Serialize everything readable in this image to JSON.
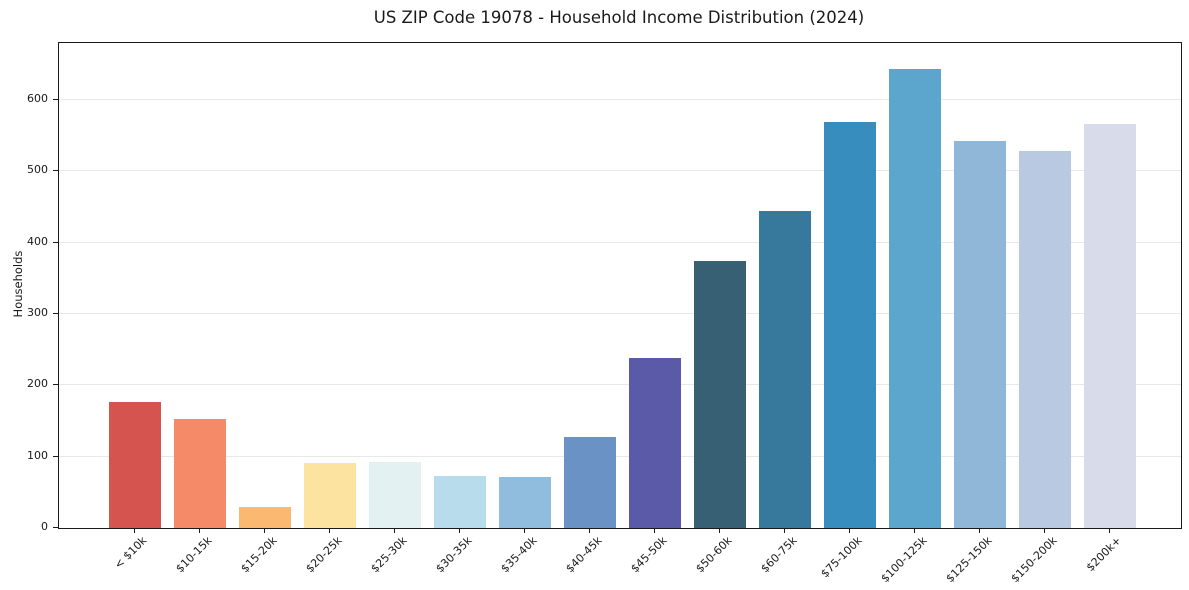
{
  "title": "US ZIP Code 19078 - Household Income Distribution (2024)",
  "chart_data": {
    "type": "bar",
    "title": "US ZIP Code 19078 - Household Income Distribution (2024)",
    "xlabel": "",
    "ylabel": "Households",
    "ylim": [
      0,
      680
    ],
    "yticks": [
      0,
      100,
      200,
      300,
      400,
      500,
      600
    ],
    "grid": "horizontal-light",
    "legend": "none",
    "categories": [
      "< $10k",
      "$10-15k",
      "$15-20k",
      "$20-25k",
      "$25-30k",
      "$30-35k",
      "$35-40k",
      "$40-45k",
      "$45-50k",
      "$50-60k",
      "$60-75k",
      "$75-100k",
      "$100-125k",
      "$125-150k",
      "$150-200k",
      "$200k+"
    ],
    "values": [
      177,
      153,
      29,
      91,
      93,
      73,
      71,
      128,
      238,
      374,
      445,
      569,
      643,
      543,
      529,
      566
    ],
    "bar_colors": [
      "#d65450",
      "#f58a68",
      "#fbb871",
      "#fde3a0",
      "#e4f1f3",
      "#b9dcec",
      "#90bddd",
      "#6b92c4",
      "#5a5aa8",
      "#386074",
      "#37789d",
      "#378dbd",
      "#5ca6cd",
      "#91b7d8",
      "#b9c9e1",
      "#d8dbe9"
    ]
  }
}
